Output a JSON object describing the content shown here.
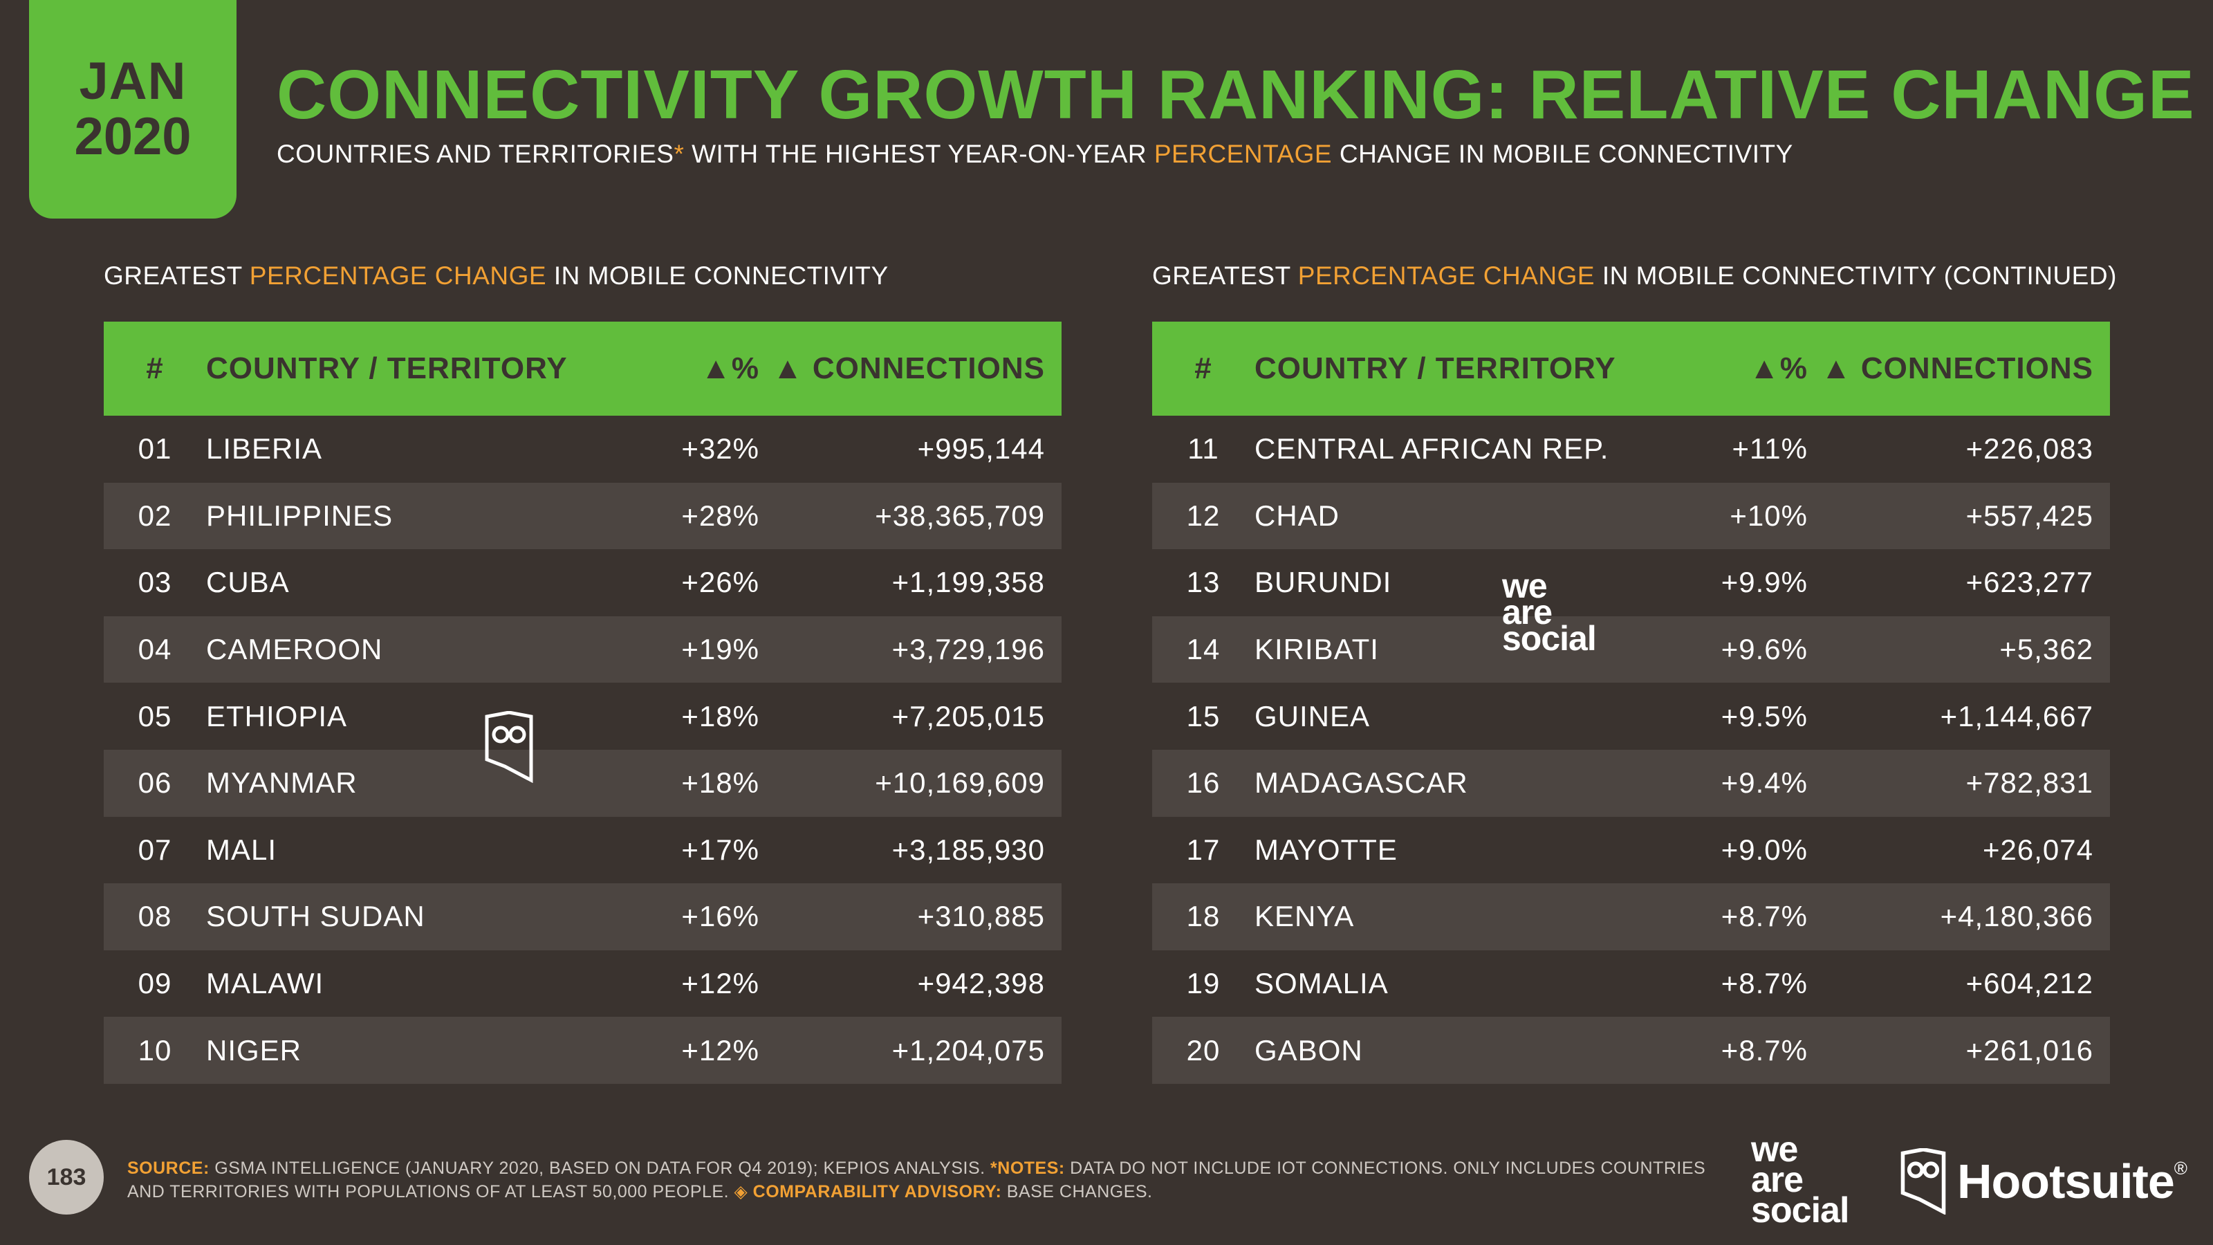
{
  "header": {
    "date_month": "JAN",
    "date_year": "2020",
    "title": "CONNECTIVITY GROWTH RANKING: RELATIVE CHANGE",
    "subtitle_part1": "COUNTRIES AND TERRITORIES",
    "subtitle_asterisk": "*",
    "subtitle_part2": " WITH THE HIGHEST YEAR-ON-YEAR ",
    "subtitle_highlight": "PERCENTAGE",
    "subtitle_part3": " CHANGE IN MOBILE CONNECTIVITY"
  },
  "left_section": {
    "label_part1": "GREATEST ",
    "label_highlight": "PERCENTAGE CHANGE",
    "label_part2": " IN MOBILE CONNECTIVITY"
  },
  "right_section": {
    "label_part1": "GREATEST ",
    "label_highlight": "PERCENTAGE CHANGE",
    "label_part2": " IN MOBILE CONNECTIVITY (CONTINUED)"
  },
  "columns": {
    "num": "#",
    "name": "COUNTRY / TERRITORY",
    "pct": "▲%",
    "conn": "▲ CONNECTIONS"
  },
  "rows_left": [
    {
      "num": "01",
      "name": "LIBERIA",
      "pct": "+32%",
      "conn": "+995,144"
    },
    {
      "num": "02",
      "name": "PHILIPPINES",
      "pct": "+28%",
      "conn": "+38,365,709"
    },
    {
      "num": "03",
      "name": "CUBA",
      "pct": "+26%",
      "conn": "+1,199,358"
    },
    {
      "num": "04",
      "name": "CAMEROON",
      "pct": "+19%",
      "conn": "+3,729,196"
    },
    {
      "num": "05",
      "name": "ETHIOPIA",
      "pct": "+18%",
      "conn": "+7,205,015"
    },
    {
      "num": "06",
      "name": "MYANMAR",
      "pct": "+18%",
      "conn": "+10,169,609"
    },
    {
      "num": "07",
      "name": "MALI",
      "pct": "+17%",
      "conn": "+3,185,930"
    },
    {
      "num": "08",
      "name": "SOUTH SUDAN",
      "pct": "+16%",
      "conn": "+310,885"
    },
    {
      "num": "09",
      "name": "MALAWI",
      "pct": "+12%",
      "conn": "+942,398"
    },
    {
      "num": "10",
      "name": "NIGER",
      "pct": "+12%",
      "conn": "+1,204,075"
    }
  ],
  "rows_right": [
    {
      "num": "11",
      "name": "CENTRAL AFRICAN REP.",
      "pct": "+11%",
      "conn": "+226,083"
    },
    {
      "num": "12",
      "name": "CHAD",
      "pct": "+10%",
      "conn": "+557,425"
    },
    {
      "num": "13",
      "name": "BURUNDI",
      "pct": "+9.9%",
      "conn": "+623,277"
    },
    {
      "num": "14",
      "name": "KIRIBATI",
      "pct": "+9.6%",
      "conn": "+5,362"
    },
    {
      "num": "15",
      "name": "GUINEA",
      "pct": "+9.5%",
      "conn": "+1,144,667"
    },
    {
      "num": "16",
      "name": "MADAGASCAR",
      "pct": "+9.4%",
      "conn": "+782,831"
    },
    {
      "num": "17",
      "name": "MAYOTTE",
      "pct": "+9.0%",
      "conn": "+26,074"
    },
    {
      "num": "18",
      "name": "KENYA",
      "pct": "+8.7%",
      "conn": "+4,180,366"
    },
    {
      "num": "19",
      "name": "SOMALIA",
      "pct": "+8.7%",
      "conn": "+604,212"
    },
    {
      "num": "20",
      "name": "GABON",
      "pct": "+8.7%",
      "conn": "+261,016"
    }
  ],
  "footer": {
    "page_number": "183",
    "source_label": "SOURCE:",
    "source_text": " GSMA INTELLIGENCE (JANUARY 2020, BASED ON DATA FOR Q4 2019); KEPIOS ANALYSIS. ",
    "notes_label": "*NOTES:",
    "notes_text": " DATA DO NOT INCLUDE IOT CONNECTIONS. ONLY INCLUDES COUNTRIES AND TERRITORIES WITH POPULATIONS OF AT LEAST 50,000 PEOPLE. ",
    "advisory_label": "◈ COMPARABILITY ADVISORY:",
    "advisory_text": " BASE CHANGES."
  },
  "logos": {
    "was_line1": "we",
    "was_line2": "are",
    "was_line3": "social",
    "hootsuite": "Hootsuite",
    "hootsuite_mark": "®"
  },
  "colors": {
    "background": "#3a332f",
    "accent_green": "#61bd3c",
    "accent_orange": "#f2a134",
    "row_alt": "#4c4541"
  }
}
